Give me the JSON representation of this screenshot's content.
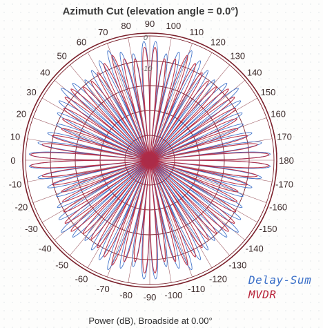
{
  "chart_data": {
    "type": "polar-line",
    "title": "Azimuth Cut (elevation angle = 0.0°)",
    "xlabel": "Power (dB), Broadside at 0.00°",
    "angle_labels": [
      "0",
      "10",
      "20",
      "30",
      "40",
      "50",
      "60",
      "70",
      "80",
      "90",
      "100",
      "110",
      "120",
      "130",
      "140",
      "150",
      "160",
      "170",
      "180",
      "-170",
      "-160",
      "-150",
      "-140",
      "-130",
      "-120",
      "-110",
      "-100",
      "-90",
      "-80",
      "-70",
      "-60",
      "-50",
      "-40",
      "-30",
      "-20",
      "-10"
    ],
    "radial_tick_labels": [
      "0",
      "-10"
    ],
    "radial_range_db": [
      -40,
      0
    ],
    "series": [
      {
        "name": "Delay-Sum",
        "color": "#3a6fc8",
        "angle_deg": [
          -180,
          -170,
          -160,
          -150,
          -140,
          -130,
          -120,
          -110,
          -100,
          -90,
          -80,
          -70,
          -60,
          -50,
          -40,
          -30,
          -20,
          -10,
          0,
          10,
          20,
          30,
          40,
          50,
          60,
          70,
          80,
          90,
          100,
          110,
          120,
          130,
          140,
          150,
          160,
          170,
          180
        ],
        "power_db": [
          0,
          -4,
          -8,
          -6,
          -3,
          -7,
          -5,
          -2,
          -6,
          0,
          -6,
          -2,
          -5,
          -7,
          -3,
          -6,
          -8,
          -4,
          0,
          -4,
          -8,
          -6,
          -3,
          -7,
          -5,
          -2,
          -6,
          0,
          -6,
          -2,
          -5,
          -7,
          -3,
          -6,
          -8,
          -4,
          0
        ]
      },
      {
        "name": "MVDR",
        "color": "#b8233a",
        "angle_deg": [
          -180,
          -170,
          -160,
          -150,
          -140,
          -130,
          -120,
          -110,
          -100,
          -90,
          -80,
          -70,
          -60,
          -50,
          -40,
          -30,
          -20,
          -10,
          0,
          10,
          20,
          30,
          40,
          50,
          60,
          70,
          80,
          90,
          100,
          110,
          120,
          130,
          140,
          150,
          160,
          170,
          180
        ],
        "power_db": [
          0,
          -6,
          -10,
          -8,
          -5,
          -9,
          -7,
          -4,
          -8,
          -2,
          -8,
          -4,
          -7,
          -9,
          -5,
          -8,
          -10,
          -6,
          0,
          -6,
          -10,
          -8,
          -5,
          -9,
          -7,
          -4,
          -8,
          -2,
          -8,
          -4,
          -7,
          -9,
          -5,
          -8,
          -10,
          -6,
          0
        ]
      }
    ],
    "legend_position": "bottom-right",
    "grid": true
  },
  "grid_color": "#7a1f2a",
  "tick_label_color": "#3b2a2a"
}
